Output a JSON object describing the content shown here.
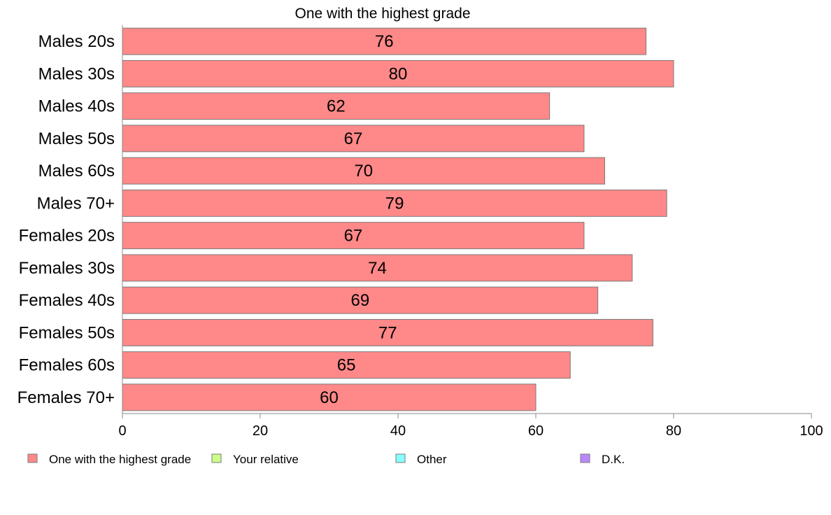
{
  "chart_data": {
    "type": "bar",
    "orientation": "horizontal",
    "title": "One with the highest grade",
    "categories": [
      "Males 20s",
      "Males 30s",
      "Males 40s",
      "Males 50s",
      "Males 60s",
      "Males 70+",
      "Females 20s",
      "Females 30s",
      "Females 40s",
      "Females 50s",
      "Females 60s",
      "Females 70+"
    ],
    "series": [
      {
        "name": "One with the highest grade",
        "color": "#ff8888",
        "values": [
          76,
          80,
          62,
          67,
          70,
          79,
          67,
          74,
          69,
          77,
          65,
          60
        ]
      }
    ],
    "xlim": [
      0,
      100
    ],
    "xticks": [
      "0",
      "20",
      "40",
      "60",
      "80",
      "100"
    ],
    "grid": false,
    "legend": {
      "placement": "bottom",
      "entries": [
        {
          "label": "One with the highest grade",
          "color": "#ff8888"
        },
        {
          "label": "Your relative",
          "color": "#ccff88"
        },
        {
          "label": "Other",
          "color": "#88ffff"
        },
        {
          "label": "D.K.",
          "color": "#bb88ff"
        }
      ]
    }
  }
}
